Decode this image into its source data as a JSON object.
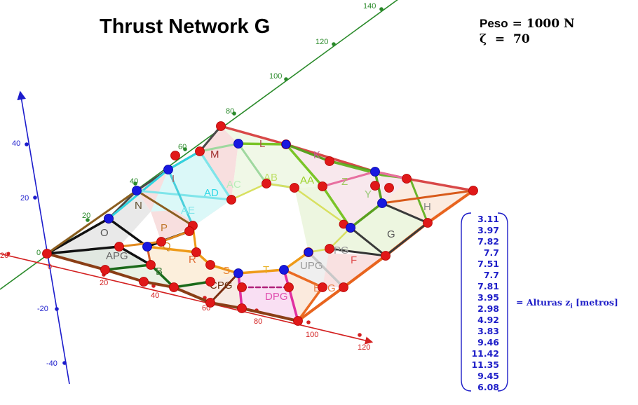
{
  "title": "Thrust Network G",
  "params": {
    "weight_label": "Peso",
    "weight_value": "1000 N",
    "zeta_label": "ζ",
    "zeta_value": "70"
  },
  "heights": {
    "values": [
      "3.11",
      "3.97",
      "7.82",
      "7.7",
      "7.51",
      "7.7",
      "7.81",
      "3.95",
      "2.98",
      "4.92",
      "3.83",
      "9.46",
      "11.42",
      "11.35",
      "9.45",
      "6.08"
    ],
    "label": "= Alturas z",
    "label_sub": "i",
    "label_unit": " [metros]"
  },
  "axes": {
    "x_ticks": [
      "20",
      "40",
      "60",
      "80",
      "100",
      "120"
    ],
    "x_origin": "0",
    "x_left": "20",
    "y_ticks": [
      "20",
      "40",
      "60",
      "80",
      "100",
      "120",
      "140"
    ],
    "y_origin": "0",
    "z_ticks": [
      "40",
      "20",
      "-20",
      "-40"
    ]
  },
  "region_labels": [
    "M",
    "L",
    "K",
    "AC",
    "AB",
    "AA",
    "Z",
    "AD",
    "Y",
    "N",
    "AE",
    "H",
    "O",
    "P",
    "G",
    "APG",
    "Q",
    "VPG",
    "B",
    "R",
    "UPG",
    "F",
    "S",
    "T",
    "CPG",
    "EPG",
    "DPG",
    "I"
  ],
  "colors": {
    "x_axis": "#d32020",
    "y_axis": "#2a8a2a",
    "z_axis": "#1c1ccc",
    "node_red": "#e01818",
    "node_blue": "#1818e0"
  }
}
